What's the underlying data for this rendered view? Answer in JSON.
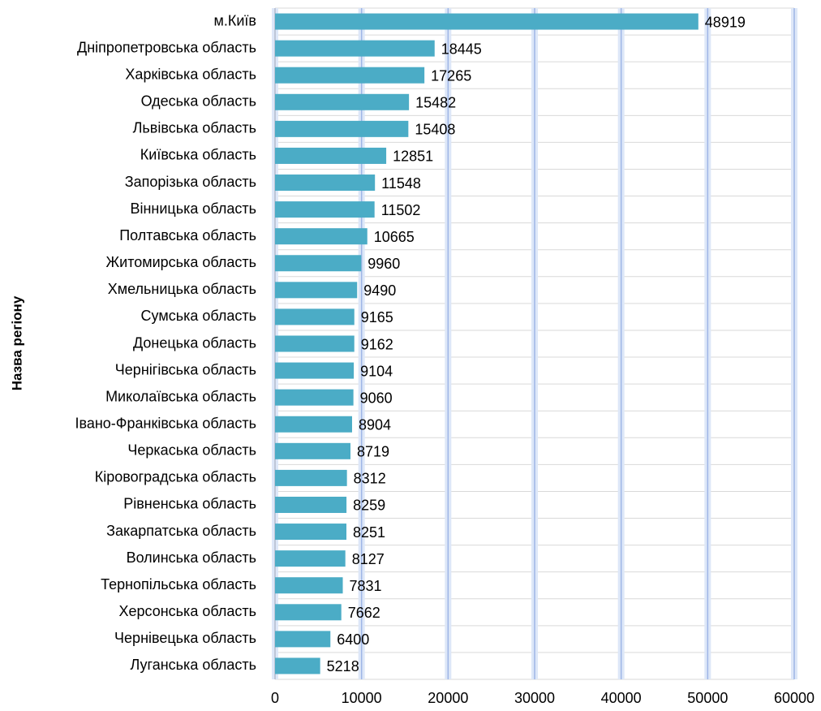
{
  "chart_data": {
    "type": "barh",
    "y_label": "Назва регіону",
    "categories": [
      "м.Київ",
      "Дніпропетровська область",
      "Харківська область",
      "Одеська область",
      "Львівська область",
      "Київська область",
      "Запорізька область",
      "Вінницька область",
      "Полтавська область",
      "Житомирська область",
      "Хмельницька область",
      "Сумська область",
      "Донецька область",
      "Чернігівська область",
      "Миколаївська область",
      "Івано-Франківська область",
      "Черкаська область",
      "Кіровоградська область",
      "Рівненська область",
      "Закарпатська область",
      "Волинська область",
      "Тернопільська область",
      "Херсонська область",
      "Чернівецька область",
      "Луганська область"
    ],
    "values": [
      48919,
      18445,
      17265,
      15482,
      15408,
      12851,
      11548,
      11502,
      10665,
      9960,
      9490,
      9165,
      9162,
      9104,
      9060,
      8904,
      8719,
      8312,
      8259,
      8251,
      8127,
      7831,
      7662,
      6400,
      5218
    ],
    "color": "#4bacc6",
    "xlim": [
      0,
      60000
    ],
    "xticks": [
      0,
      10000,
      20000,
      30000,
      40000,
      50000,
      60000
    ],
    "grid": true
  }
}
